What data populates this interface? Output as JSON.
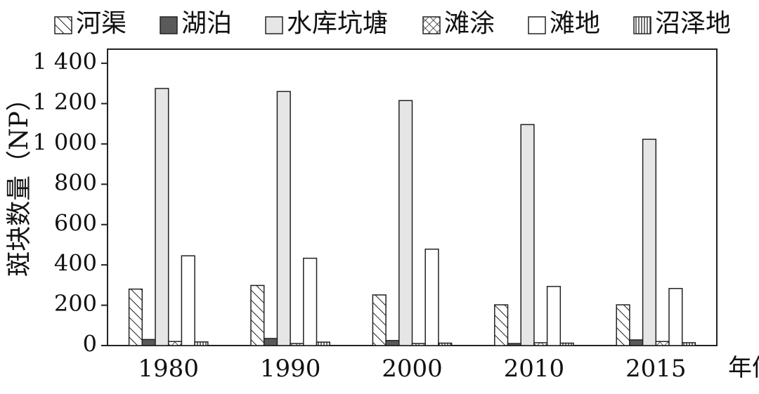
{
  "chart_data": {
    "type": "bar",
    "y_label": "斑块数量（NP）",
    "x_label": "年份",
    "categories": [
      "1980",
      "1990",
      "2000",
      "2010",
      "2015"
    ],
    "series": [
      {
        "name": "河渠",
        "color": "#ffffff",
        "pattern": "diagonal",
        "values": [
          280,
          298,
          251,
          202,
          202
        ]
      },
      {
        "name": "湖泊",
        "color": "#5a5a5a",
        "pattern": "solid",
        "values": [
          30,
          35,
          25,
          10,
          28
        ]
      },
      {
        "name": "水库坑塘",
        "color": "#e6e6e6",
        "pattern": "solid",
        "values": [
          1275,
          1260,
          1215,
          1096,
          1023
        ]
      },
      {
        "name": "滩涂",
        "color": "#ffffff",
        "pattern": "cross",
        "values": [
          20,
          10,
          10,
          14,
          20
        ]
      },
      {
        "name": "滩地",
        "color": "#ffffff",
        "pattern": "solid",
        "values": [
          445,
          433,
          478,
          293,
          283
        ]
      },
      {
        "name": "沼泽地",
        "color": "#ffffff",
        "pattern": "vertical",
        "values": [
          18,
          17,
          12,
          12,
          14
        ]
      }
    ],
    "ylim": [
      0,
      1470
    ],
    "yticks": [
      0,
      200,
      400,
      600,
      800,
      {
        "value": 1000,
        "label": "1 000"
      },
      {
        "value": 1200,
        "label": "1 200"
      },
      {
        "value": 1400,
        "label": "1 400"
      }
    ],
    "grid": false,
    "legend": "top"
  }
}
